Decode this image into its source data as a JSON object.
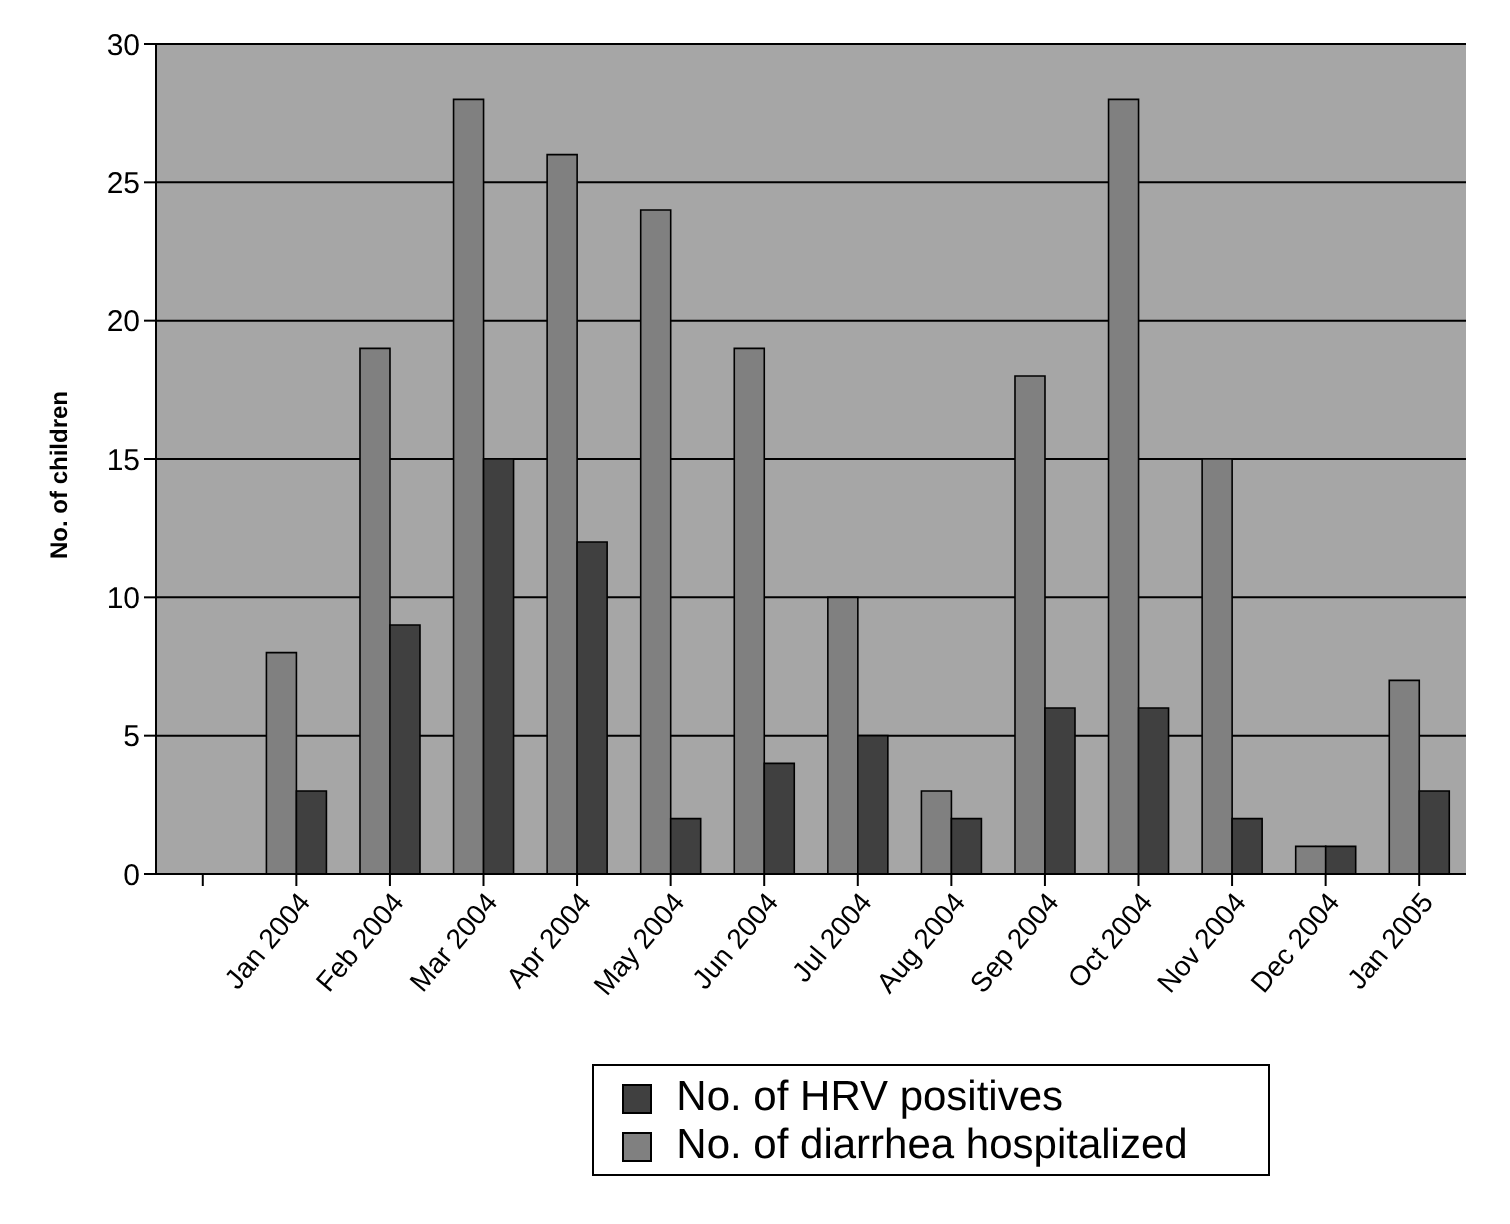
{
  "chart_data": {
    "type": "bar",
    "ylabel": "No. of children",
    "categories": [
      null,
      "Jan 2004",
      "Feb 2004",
      "Mar 2004",
      "Apr 2004",
      "May 2004",
      "Jun 2004",
      "Jul 2004",
      "Aug 2004",
      "Sep 2004",
      "Oct 2004",
      "Nov 2004",
      "Dec 2004",
      "Jan 2005"
    ],
    "series": [
      {
        "name": "No. of diarrhea hospitalized",
        "color": "#808080",
        "values": [
          0,
          8,
          19,
          28,
          26,
          24,
          19,
          10,
          3,
          18,
          28,
          15,
          1,
          7
        ]
      },
      {
        "name": "No. of HRV positives",
        "color": "#404040",
        "values": [
          0,
          3,
          9,
          15,
          12,
          2,
          4,
          5,
          2,
          6,
          6,
          2,
          1,
          3
        ]
      }
    ],
    "ylim": [
      0,
      30
    ],
    "yticks": [
      0,
      5,
      10,
      15,
      20,
      25,
      30
    ],
    "grid": "y",
    "legend": "bottom"
  }
}
